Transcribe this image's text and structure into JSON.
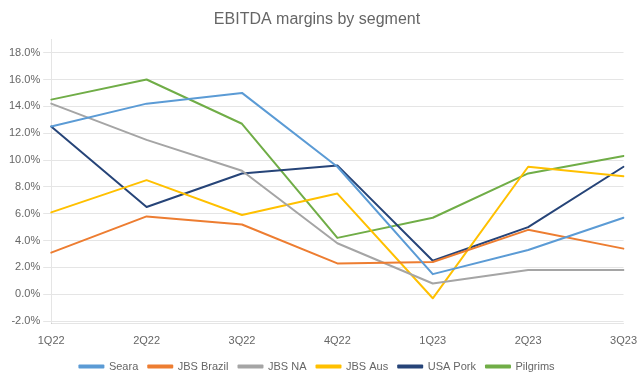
{
  "chart_data": {
    "type": "line",
    "title": "EBITDA margins by segment",
    "categories": [
      "1Q22",
      "2Q22",
      "3Q22",
      "4Q22",
      "1Q23",
      "2Q23",
      "3Q23"
    ],
    "series": [
      {
        "name": "Seara",
        "color": "#5b9bd5",
        "values": [
          0.125,
          0.142,
          0.15,
          0.095,
          0.015,
          0.033,
          0.057
        ]
      },
      {
        "name": "JBS Brazil",
        "color": "#ed7d31",
        "values": [
          0.031,
          0.058,
          0.052,
          0.023,
          0.024,
          0.048,
          0.034
        ]
      },
      {
        "name": "JBS NA",
        "color": "#a5a5a5",
        "values": [
          0.142,
          0.115,
          0.092,
          0.038,
          0.008,
          0.018,
          0.018
        ]
      },
      {
        "name": "JBS Aus",
        "color": "#ffc000",
        "values": [
          0.061,
          0.085,
          0.059,
          0.075,
          -0.003,
          0.095,
          0.088
        ]
      },
      {
        "name": "USA Pork",
        "color": "#264478",
        "values": [
          0.125,
          0.065,
          0.09,
          0.096,
          0.025,
          0.05,
          0.095
        ]
      },
      {
        "name": "Pilgrims",
        "color": "#70ad47",
        "values": [
          0.145,
          0.16,
          0.127,
          0.042,
          0.057,
          0.09,
          0.103
        ]
      }
    ],
    "ylim": [
      -0.022,
      0.19
    ],
    "yticks": [
      {
        "value": -0.02,
        "label": "-2.0%"
      },
      {
        "value": 0.0,
        "label": "0.0%"
      },
      {
        "value": 0.02,
        "label": "2.0%"
      },
      {
        "value": 0.04,
        "label": "4.0%"
      },
      {
        "value": 0.06,
        "label": "6.0%"
      },
      {
        "value": 0.08,
        "label": "8.0%"
      },
      {
        "value": 0.1,
        "label": "10.0%"
      },
      {
        "value": 0.12,
        "label": "12.0%"
      },
      {
        "value": 0.14,
        "label": "14.0%"
      },
      {
        "value": 0.16,
        "label": "16.0%"
      },
      {
        "value": 0.18,
        "label": "18.0%"
      }
    ],
    "grid": true,
    "legend": "bottom"
  }
}
